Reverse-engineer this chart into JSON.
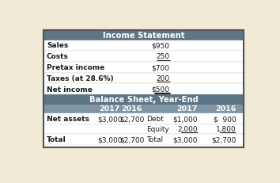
{
  "bg_color": "#f0ead6",
  "outer_border_color": "#555555",
  "header_bg": "#5e7585",
  "header_text_color": "#ffffff",
  "subheader_bg": "#8096a5",
  "text_color": "#1a1a1a",
  "income_header": "Income Statement",
  "balance_header": "Balance Sheet, Year-End",
  "income_rows": [
    [
      "Sales",
      "$950"
    ],
    [
      "Costs",
      "250"
    ],
    [
      "Pretax income",
      "$700"
    ],
    [
      "Taxes (at 28.6%)",
      "200"
    ],
    [
      "Net income",
      "$500"
    ]
  ],
  "income_underline_rows": [
    1,
    3
  ],
  "income_double_underline_row": 4,
  "balance_rows": [
    [
      "Net assets",
      "$3,000",
      "$2,700",
      "Debt",
      "$1,000",
      "$  900"
    ],
    [
      "",
      "",
      "",
      "Equity",
      "2,000",
      "1,800"
    ],
    [
      "Total",
      "$3,000",
      "$2,700",
      "Total",
      "$3,000",
      "$2,700"
    ]
  ],
  "figsize": [
    3.54,
    2.32
  ],
  "dpi": 100
}
